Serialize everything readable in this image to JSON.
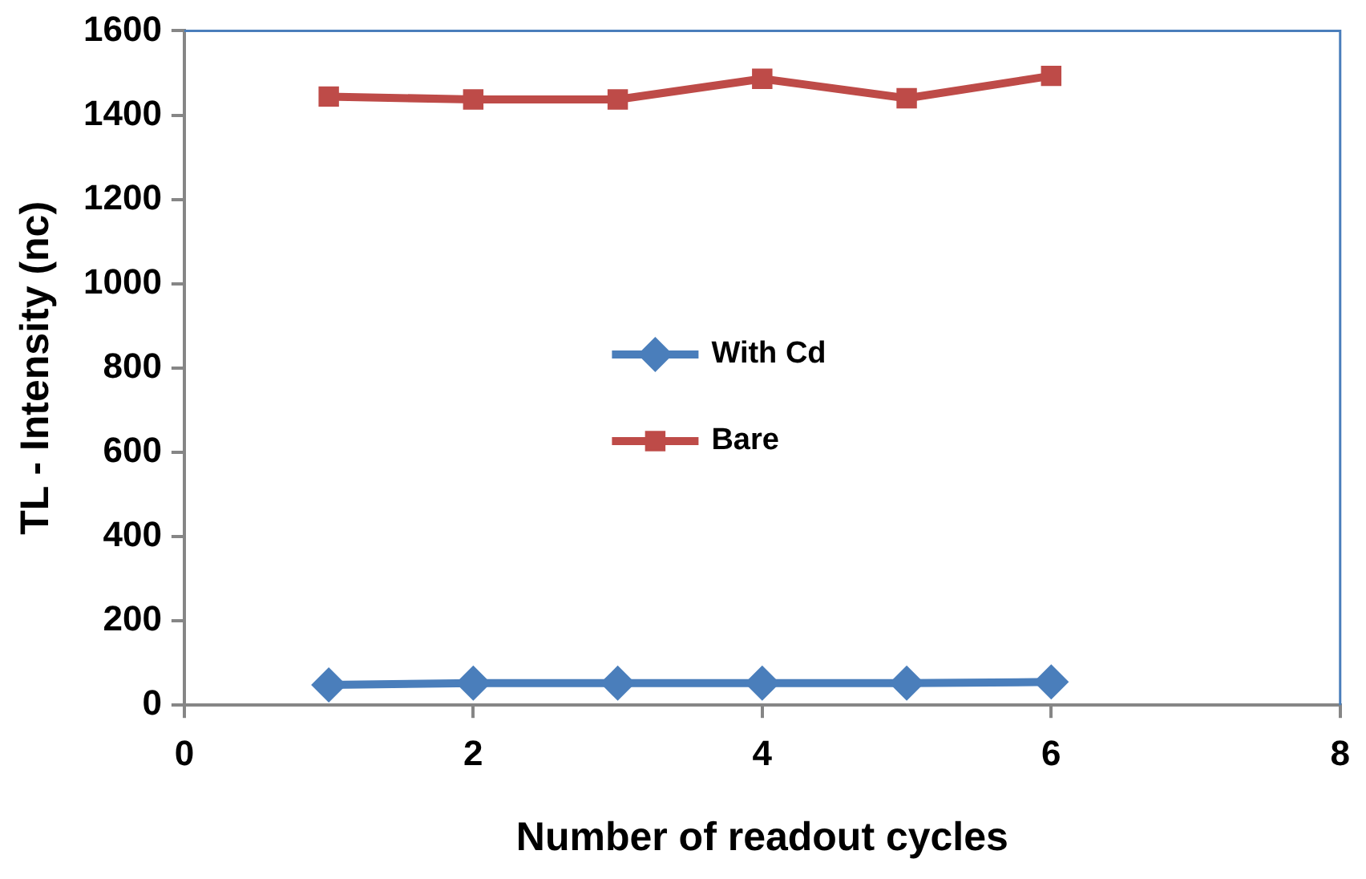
{
  "chart_data": {
    "type": "line",
    "xlabel": "Number of readout cycles",
    "ylabel": "TL - Intensity (nc)",
    "x": [
      1,
      2,
      3,
      4,
      5,
      6
    ],
    "series": [
      {
        "name": "With Cd",
        "color": "#4a7ebb",
        "marker": "diamond",
        "values": [
          48,
          52,
          52,
          52,
          52,
          55
        ]
      },
      {
        "name": "Bare",
        "color": "#be4b48",
        "marker": "square",
        "values": [
          1444,
          1437,
          1437,
          1486,
          1440,
          1493
        ]
      }
    ],
    "xlim": [
      0,
      8
    ],
    "xticks": [
      0,
      2,
      4,
      6,
      8
    ],
    "ylim": [
      0,
      1600
    ],
    "yticks": [
      0,
      200,
      400,
      600,
      800,
      1000,
      1200,
      1400,
      1600
    ],
    "grid": false,
    "legend": "center"
  }
}
